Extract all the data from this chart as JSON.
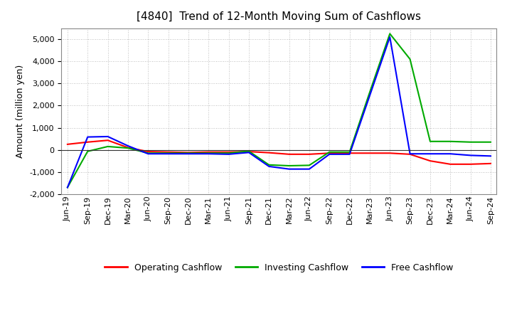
{
  "title": "[4840]  Trend of 12-Month Moving Sum of Cashflows",
  "ylabel": "Amount (million yen)",
  "x_labels": [
    "Jun-19",
    "Sep-19",
    "Dec-19",
    "Mar-20",
    "Jun-20",
    "Sep-20",
    "Dec-20",
    "Mar-21",
    "Jun-21",
    "Sep-21",
    "Dec-21",
    "Mar-22",
    "Jun-22",
    "Sep-22",
    "Dec-22",
    "Mar-23",
    "Jun-23",
    "Sep-23",
    "Dec-23",
    "Mar-24",
    "Jun-24",
    "Sep-24"
  ],
  "operating": [
    250,
    350,
    430,
    100,
    -80,
    -100,
    -120,
    -100,
    -100,
    -80,
    -130,
    -200,
    -200,
    -150,
    -150,
    -150,
    -150,
    -200,
    -500,
    -650,
    -650,
    -620
  ],
  "investing": [
    -1700,
    -70,
    150,
    80,
    -150,
    -150,
    -150,
    -150,
    -150,
    -60,
    -680,
    -720,
    -700,
    -100,
    -100,
    2600,
    5250,
    4100,
    380,
    380,
    350,
    350
  ],
  "free": [
    -1700,
    580,
    600,
    180,
    -180,
    -180,
    -180,
    -180,
    -200,
    -120,
    -750,
    -870,
    -870,
    -200,
    -200,
    2450,
    5100,
    -180,
    -180,
    -180,
    -250,
    -280
  ],
  "ylim": [
    -2000,
    5500
  ],
  "yticks": [
    -2000,
    -1000,
    0,
    1000,
    2000,
    3000,
    4000,
    5000
  ],
  "line_colors": {
    "operating": "#ff0000",
    "investing": "#00aa00",
    "free": "#0000ff"
  },
  "legend_labels": [
    "Operating Cashflow",
    "Investing Cashflow",
    "Free Cashflow"
  ],
  "bg_color": "#ffffff",
  "grid_color": "#aaaaaa",
  "title_fontsize": 11,
  "label_fontsize": 9,
  "tick_fontsize": 8
}
